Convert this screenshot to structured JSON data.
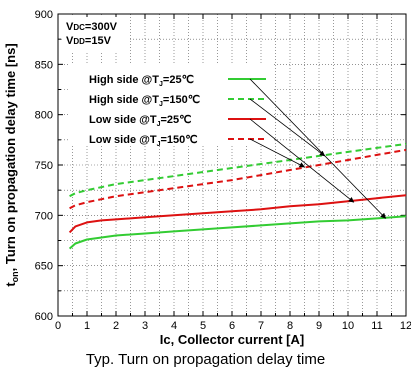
{
  "caption": "Typ. Turn on propagation delay time",
  "chart_data": {
    "type": "line",
    "xlabel": "Ic, Collector current [A]",
    "ylabel": "ton, Turn on propagation delay time [ns]",
    "ylabel_parts": {
      "main": "t",
      "sub": "on",
      "rest": ", Turn on propagation delay time [ns]"
    },
    "xlim": [
      0,
      12
    ],
    "ylim": [
      600,
      900
    ],
    "xticks": [
      "0",
      "1",
      "2",
      "3",
      "4",
      "5",
      "6",
      "7",
      "8",
      "9",
      "10",
      "11",
      "12"
    ],
    "yticks": [
      "600",
      "650",
      "700",
      "750",
      "800",
      "850",
      "900"
    ],
    "grid": true,
    "conditions": [
      {
        "main": "V",
        "sub": "DC",
        "rest": "=300V"
      },
      {
        "main": "V",
        "sub": "DD",
        "rest": "=15V"
      }
    ],
    "series": [
      {
        "name": "High side @TJ=25℃",
        "label_parts": {
          "pre": "High side @T",
          "sub": "J",
          "post": "=25℃"
        },
        "color": "#33cc33",
        "dash": "solid",
        "x": [
          0.4,
          0.6,
          1,
          1.5,
          2,
          3,
          4,
          5,
          6,
          7,
          8,
          9,
          10,
          11,
          12
        ],
        "y": [
          667,
          672,
          676,
          678,
          680,
          682,
          684,
          686,
          688,
          690,
          692,
          694,
          695,
          697,
          699
        ]
      },
      {
        "name": "High side @TJ=150℃",
        "label_parts": {
          "pre": "High side @T",
          "sub": "J",
          "post": "=150℃"
        },
        "color": "#33cc33",
        "dash": "dashed",
        "x": [
          0.4,
          0.6,
          1,
          1.5,
          2,
          3,
          4,
          5,
          6,
          7,
          8,
          9,
          10,
          11,
          12
        ],
        "y": [
          719,
          722,
          725,
          728,
          731,
          735,
          739,
          743,
          747,
          751,
          755,
          759,
          763,
          767,
          771
        ]
      },
      {
        "name": "Low side @TJ=25℃",
        "label_parts": {
          "pre": "Low side @T",
          "sub": "J",
          "post": "=25℃"
        },
        "color": "#dd1111",
        "dash": "solid",
        "x": [
          0.4,
          0.6,
          1,
          1.5,
          2,
          3,
          4,
          5,
          6,
          7,
          8,
          9,
          10,
          11,
          12
        ],
        "y": [
          683,
          689,
          693,
          695,
          696,
          698,
          700,
          702,
          704,
          706,
          709,
          711,
          714,
          717,
          720
        ]
      },
      {
        "name": "Low side @TJ=150℃",
        "label_parts": {
          "pre": "Low side @T",
          "sub": "J",
          "post": "=150℃"
        },
        "color": "#dd1111",
        "dash": "dashed",
        "x": [
          0.4,
          0.6,
          1,
          1.5,
          2,
          3,
          4,
          5,
          6,
          7,
          8,
          9,
          10,
          11,
          12
        ],
        "y": [
          707,
          710,
          713,
          716,
          719,
          723,
          727,
          731,
          735,
          740,
          745,
          750,
          755,
          760,
          765
        ]
      }
    ]
  }
}
